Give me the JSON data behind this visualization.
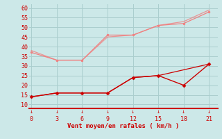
{
  "x": [
    0,
    3,
    6,
    9,
    12,
    15,
    18,
    21
  ],
  "line1": [
    37,
    33,
    33,
    46,
    46,
    51,
    52,
    58
  ],
  "line2": [
    38,
    33,
    33,
    45,
    46,
    51,
    53,
    59
  ],
  "line3": [
    14,
    16,
    16,
    16,
    24,
    25,
    20,
    31
  ],
  "line4": [
    14,
    16,
    16,
    16,
    24,
    25,
    28,
    31
  ],
  "color_light": "#f08080",
  "color_dark": "#cc0000",
  "color_bg": "#cce8e8",
  "color_grid": "#aacece",
  "xlabel": "Vent moyen/en rafales ( km/h )",
  "xlabel_color": "#cc0000",
  "tick_color": "#cc0000",
  "yticks": [
    10,
    15,
    20,
    25,
    30,
    35,
    40,
    45,
    50,
    55,
    60
  ],
  "xticks": [
    0,
    3,
    6,
    9,
    12,
    15,
    18,
    21
  ],
  "ylim": [
    8,
    62
  ],
  "xlim": [
    -0.3,
    22
  ]
}
